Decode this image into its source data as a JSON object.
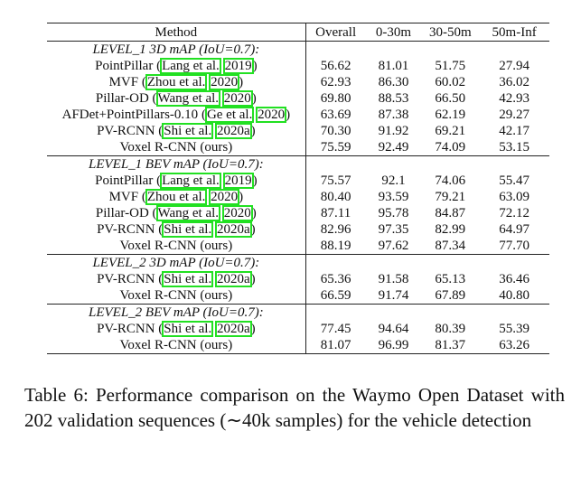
{
  "table": {
    "headers": [
      "Method",
      "Overall",
      "0-30m",
      "30-50m",
      "50m-Inf"
    ],
    "groups": [
      {
        "title": "LEVEL_1 3D mAP (IoU=0.7):",
        "rows": [
          {
            "method": "PointPillar",
            "cite_author": "Lang et al.",
            "cite_year": "2019",
            "values": [
              "56.62",
              "81.01",
              "51.75",
              "27.94"
            ],
            "bold": false
          },
          {
            "method": "MVF",
            "cite_author": "Zhou et al.",
            "cite_year": "2020",
            "values": [
              "62.93",
              "86.30",
              "60.02",
              "36.02"
            ],
            "bold": false
          },
          {
            "method": "Pillar-OD",
            "cite_author": "Wang et al.",
            "cite_year": "2020",
            "values": [
              "69.80",
              "88.53",
              "66.50",
              "42.93"
            ],
            "bold": false
          },
          {
            "method": "AFDet+PointPillars-0.10",
            "cite_author": "Ge et al.",
            "cite_year": "2020",
            "values": [
              "63.69",
              "87.38",
              "62.19",
              "29.27"
            ],
            "bold": false
          },
          {
            "method": "PV-RCNN",
            "cite_author": "Shi et al.",
            "cite_year": "2020a",
            "values": [
              "70.30",
              "91.92",
              "69.21",
              "42.17"
            ],
            "bold": false
          },
          {
            "method": "Voxel R-CNN (ours)",
            "values": [
              "75.59",
              "92.49",
              "74.09",
              "53.15"
            ],
            "bold": true
          }
        ]
      },
      {
        "title": "LEVEL_1 BEV mAP (IoU=0.7):",
        "rows": [
          {
            "method": "PointPillar",
            "cite_author": "Lang et al.",
            "cite_year": "2019",
            "values": [
              "75.57",
              "92.1",
              "74.06",
              "55.47"
            ],
            "bold": false
          },
          {
            "method": "MVF",
            "cite_author": "Zhou et al.",
            "cite_year": "2020",
            "values": [
              "80.40",
              "93.59",
              "79.21",
              "63.09"
            ],
            "bold": false
          },
          {
            "method": "Pillar-OD",
            "cite_author": "Wang et al.",
            "cite_year": "2020",
            "values": [
              "87.11",
              "95.78",
              "84.87",
              "72.12"
            ],
            "bold": false
          },
          {
            "method": "PV-RCNN",
            "cite_author": "Shi et al.",
            "cite_year": "2020a",
            "values": [
              "82.96",
              "97.35",
              "82.99",
              "64.97"
            ],
            "bold": false
          },
          {
            "method": "Voxel R-CNN (ours)",
            "values": [
              "88.19",
              "97.62",
              "87.34",
              "77.70"
            ],
            "bold": true
          }
        ]
      },
      {
        "title": "LEVEL_2 3D mAP (IoU=0.7):",
        "rows": [
          {
            "method": "PV-RCNN",
            "cite_author": "Shi et al.",
            "cite_year": "2020a",
            "values": [
              "65.36",
              "91.58",
              "65.13",
              "36.46"
            ],
            "bold": false
          },
          {
            "method": "Voxel R-CNN (ours)",
            "values": [
              "66.59",
              "91.74",
              "67.89",
              "40.80"
            ],
            "bold": true
          }
        ]
      },
      {
        "title": "LEVEL_2 BEV mAP (IoU=0.7):",
        "rows": [
          {
            "method": "PV-RCNN",
            "cite_author": "Shi et al.",
            "cite_year": "2020a",
            "values": [
              "77.45",
              "94.64",
              "80.39",
              "55.39"
            ],
            "bold": false
          },
          {
            "method": "Voxel R-CNN (ours)",
            "values": [
              "81.07",
              "96.99",
              "81.37",
              "63.26"
            ],
            "bold": true
          }
        ]
      }
    ],
    "citation_box_color": "#22e022"
  },
  "caption": "Table 6: Performance comparison on the Waymo Open Dataset with 202 validation sequences (∼40k samples) for the vehicle detection"
}
